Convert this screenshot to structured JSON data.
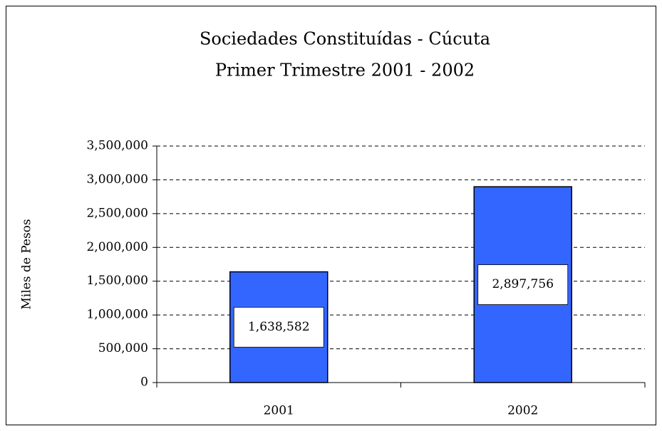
{
  "chart_data": {
    "type": "bar",
    "title": "Sociedades Constituídas - Cúcuta",
    "subtitle": "Primer Trimestre 2001 - 2002",
    "y_label": "Miles de Pesos",
    "categories": [
      "2001",
      "2002"
    ],
    "values": [
      1638582,
      2897756
    ],
    "value_labels": [
      "1,638,582",
      "2,897,756"
    ],
    "color": "#3366ff",
    "ylim": [
      0,
      3500000
    ],
    "yticks": [
      0,
      {
        "value": 500000,
        "label": "500,000"
      },
      {
        "value": 1000000,
        "label": "1,000,000"
      },
      {
        "value": 1500000,
        "label": "1,500,000"
      },
      {
        "value": 2000000,
        "label": "2,000,000"
      },
      {
        "value": 2500000,
        "label": "2,500,000"
      },
      {
        "value": 3000000,
        "label": "3,000,000"
      },
      {
        "value": 3500000,
        "label": "3,500,000"
      }
    ],
    "grid": true
  }
}
